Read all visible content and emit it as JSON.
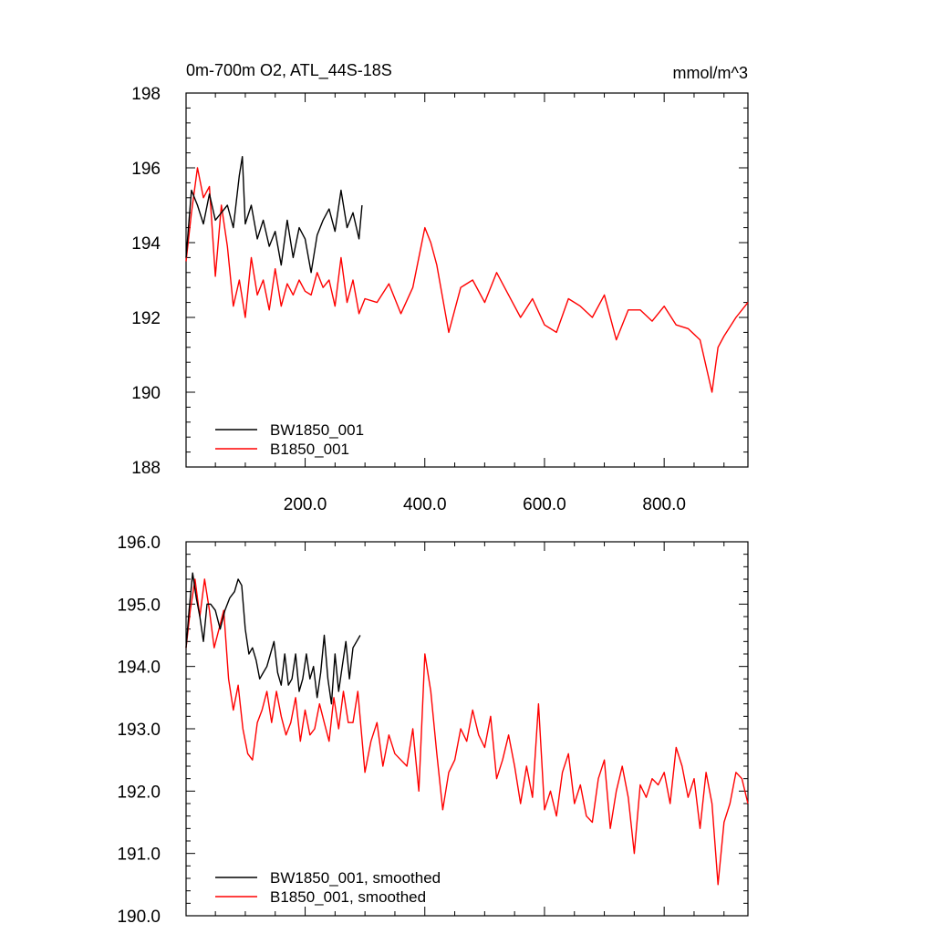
{
  "chart_data": [
    {
      "type": "line",
      "title": "0m-700m O2, ATL_44S-18S",
      "units": "mmol/m^3",
      "xlim": [
        1,
        940
      ],
      "ylim": [
        188,
        198
      ],
      "xticks": [
        200,
        400,
        600,
        800
      ],
      "xtick_labels": [
        "200.0",
        "400.0",
        "600.0",
        "800.0"
      ],
      "yticks": [
        188,
        190,
        192,
        194,
        196,
        198
      ],
      "ytick_labels": [
        "188",
        "190",
        "192",
        "194",
        "196",
        "198"
      ],
      "grid": false,
      "legend_position": "bottom-left",
      "series": [
        {
          "name": "BW1850_001",
          "color": "#000000",
          "x": [
            1,
            10,
            20,
            30,
            40,
            50,
            60,
            70,
            80,
            90,
            95,
            100,
            110,
            120,
            130,
            140,
            150,
            160,
            170,
            180,
            190,
            200,
            210,
            220,
            230,
            240,
            250,
            260,
            270,
            280,
            290,
            295
          ],
          "y": [
            193.6,
            195.4,
            195.0,
            194.5,
            195.3,
            194.6,
            194.8,
            195.0,
            194.4,
            195.8,
            196.3,
            194.5,
            195.0,
            194.1,
            194.6,
            193.9,
            194.3,
            193.4,
            194.6,
            193.6,
            194.4,
            194.1,
            193.2,
            194.2,
            194.6,
            194.9,
            194.3,
            195.4,
            194.4,
            194.8,
            194.1,
            195.0
          ]
        },
        {
          "name": "B1850_001",
          "color": "#ff0000",
          "x": [
            1,
            10,
            20,
            30,
            40,
            50,
            60,
            70,
            80,
            90,
            100,
            110,
            120,
            130,
            140,
            150,
            160,
            170,
            180,
            190,
            200,
            210,
            220,
            230,
            240,
            250,
            260,
            270,
            280,
            290,
            300,
            320,
            340,
            360,
            380,
            400,
            410,
            420,
            440,
            460,
            480,
            500,
            520,
            540,
            560,
            580,
            600,
            620,
            640,
            660,
            680,
            700,
            720,
            740,
            760,
            780,
            800,
            820,
            840,
            860,
            880,
            890,
            900,
            920,
            940
          ],
          "y": [
            193.5,
            194.8,
            196.0,
            195.2,
            195.5,
            193.1,
            195.0,
            193.9,
            192.3,
            193.0,
            192.0,
            193.6,
            192.6,
            193.0,
            192.2,
            193.3,
            192.3,
            192.9,
            192.6,
            193.0,
            192.7,
            192.6,
            193.2,
            192.8,
            193.0,
            192.3,
            193.6,
            192.4,
            193.0,
            192.1,
            192.5,
            192.4,
            192.9,
            192.1,
            192.8,
            194.4,
            194.0,
            193.4,
            191.6,
            192.8,
            193.0,
            192.4,
            193.2,
            192.6,
            192.0,
            192.5,
            191.8,
            191.6,
            192.5,
            192.3,
            192.0,
            192.6,
            191.4,
            192.2,
            192.2,
            191.9,
            192.3,
            191.8,
            191.7,
            191.4,
            190.0,
            191.2,
            191.5,
            192.0,
            192.4
          ]
        }
      ]
    },
    {
      "type": "line",
      "xlim": [
        1,
        940
      ],
      "ylim": [
        190,
        196
      ],
      "xticks": [
        200,
        400,
        600,
        800
      ],
      "yticks": [
        190,
        191,
        192,
        193,
        194,
        195,
        196
      ],
      "ytick_labels": [
        "190.0",
        "191.0",
        "192.0",
        "193.0",
        "194.0",
        "195.0",
        "196.0"
      ],
      "grid": false,
      "legend_position": "bottom-left",
      "series": [
        {
          "name": "BW1850_001, smoothed",
          "color": "#000000",
          "x": [
            1,
            6,
            12,
            18,
            24,
            30,
            36,
            42,
            50,
            58,
            66,
            74,
            82,
            88,
            94,
            100,
            106,
            112,
            118,
            124,
            130,
            136,
            142,
            148,
            154,
            160,
            166,
            172,
            178,
            184,
            190,
            196,
            202,
            208,
            214,
            220,
            226,
            232,
            238,
            244,
            250,
            256,
            262,
            268,
            274,
            280,
            286,
            292
          ],
          "y": [
            194.3,
            194.9,
            195.5,
            195.1,
            194.8,
            194.4,
            195.0,
            195.0,
            194.9,
            194.6,
            194.9,
            195.1,
            195.2,
            195.4,
            195.3,
            194.6,
            194.2,
            194.3,
            194.1,
            193.8,
            193.9,
            194.0,
            194.2,
            194.4,
            193.9,
            193.7,
            194.2,
            193.7,
            193.8,
            194.2,
            193.6,
            193.8,
            194.2,
            193.8,
            194.0,
            193.5,
            193.9,
            194.5,
            193.8,
            193.4,
            194.2,
            193.6,
            194.0,
            194.4,
            193.8,
            194.3,
            194.4,
            194.5
          ]
        },
        {
          "name": "B1850_001, smoothed",
          "color": "#ff0000",
          "x": [
            1,
            8,
            16,
            24,
            32,
            40,
            48,
            56,
            64,
            72,
            80,
            88,
            96,
            104,
            112,
            120,
            128,
            136,
            144,
            152,
            160,
            168,
            176,
            184,
            192,
            200,
            208,
            216,
            224,
            232,
            240,
            248,
            256,
            264,
            272,
            280,
            288,
            300,
            310,
            320,
            330,
            340,
            350,
            360,
            370,
            380,
            390,
            400,
            410,
            420,
            430,
            440,
            450,
            460,
            470,
            480,
            490,
            500,
            510,
            520,
            530,
            540,
            550,
            560,
            570,
            580,
            590,
            600,
            610,
            620,
            630,
            640,
            650,
            660,
            670,
            680,
            690,
            700,
            710,
            720,
            730,
            740,
            750,
            760,
            770,
            780,
            790,
            800,
            810,
            820,
            830,
            840,
            850,
            860,
            870,
            880,
            890,
            900,
            910,
            920,
            930,
            940
          ],
          "y": [
            194.3,
            194.9,
            195.4,
            194.8,
            195.4,
            194.9,
            194.3,
            194.6,
            194.9,
            193.8,
            193.3,
            193.7,
            193.0,
            192.6,
            192.5,
            193.1,
            193.3,
            193.6,
            193.1,
            193.6,
            193.2,
            192.9,
            193.1,
            193.5,
            192.8,
            193.3,
            192.9,
            193.0,
            193.4,
            193.1,
            192.8,
            193.5,
            193.0,
            193.6,
            193.1,
            193.1,
            193.6,
            192.3,
            192.8,
            193.1,
            192.4,
            192.9,
            192.6,
            192.5,
            192.4,
            193.0,
            192.0,
            194.2,
            193.6,
            192.6,
            191.7,
            192.3,
            192.5,
            193.0,
            192.8,
            193.3,
            192.9,
            192.7,
            193.2,
            192.2,
            192.5,
            192.9,
            192.4,
            191.8,
            192.4,
            191.9,
            193.4,
            191.7,
            192.0,
            191.6,
            192.3,
            192.6,
            191.8,
            192.1,
            191.6,
            191.5,
            192.2,
            192.5,
            191.4,
            192.0,
            192.4,
            191.9,
            191.0,
            192.1,
            191.9,
            192.2,
            192.1,
            192.3,
            191.8,
            192.7,
            192.4,
            191.9,
            192.2,
            191.4,
            192.3,
            191.8,
            190.5,
            191.5,
            191.8,
            192.3,
            192.2,
            191.8
          ]
        }
      ]
    }
  ]
}
